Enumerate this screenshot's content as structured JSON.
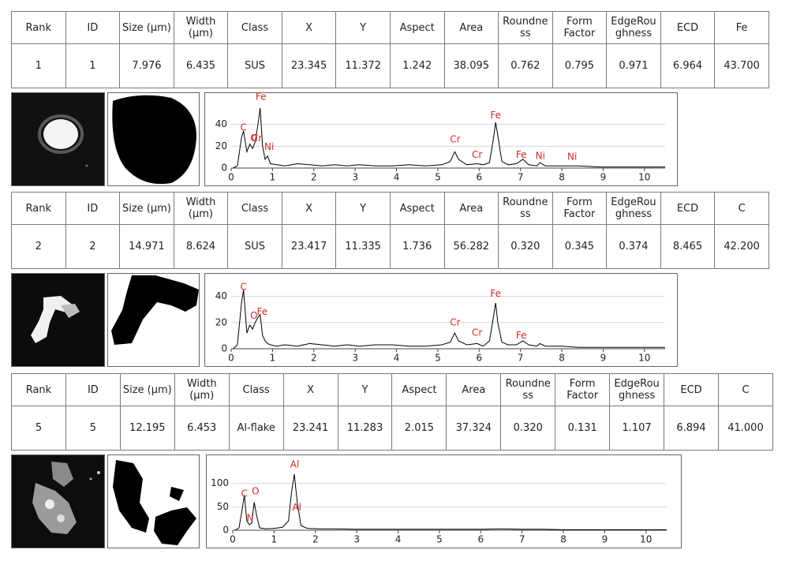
{
  "records": [
    {
      "header": [
        "Rank",
        "ID",
        "Size (μm)",
        "Width (μm)",
        "Class",
        "X",
        "Y",
        "Aspect",
        "Area",
        "Roundness",
        "Form Factor",
        "EdgeRoughness",
        "ECD",
        "Fe"
      ],
      "row": [
        "1",
        "1",
        "7.976",
        "6.435",
        "SUS",
        "23.345",
        "11.372",
        "1.242",
        "38.095",
        "0.762",
        "0.795",
        "0.971",
        "6.964",
        "43.700"
      ]
    },
    {
      "header": [
        "Rank",
        "ID",
        "Size (μm)",
        "Width (μm)",
        "Class",
        "X",
        "Y",
        "Aspect",
        "Area",
        "Roundness",
        "Form Factor",
        "EdgeRoughness",
        "ECD",
        "C"
      ],
      "row": [
        "2",
        "2",
        "14.971",
        "8.624",
        "SUS",
        "23.417",
        "11.335",
        "1.736",
        "56.282",
        "0.320",
        "0.345",
        "0.374",
        "8.465",
        "42.200"
      ]
    },
    {
      "header": [
        "Rank",
        "ID",
        "Size (μm)",
        "Width (μm)",
        "Class",
        "X",
        "Y",
        "Aspect",
        "Area",
        "Roundness",
        "Form Factor",
        "EdgeRoughness",
        "ECD",
        "C"
      ],
      "row": [
        "5",
        "5",
        "12.195",
        "6.453",
        "Al-flake",
        "23.241",
        "11.283",
        "2.015",
        "37.324",
        "0.320",
        "0.131",
        "1.107",
        "6.894",
        "41.000"
      ]
    }
  ],
  "chart_data": [
    {
      "type": "line",
      "color": "#000000",
      "annotation_color": "#d42a2a",
      "grid": true,
      "xlim": [
        0,
        10.5
      ],
      "xticks": [
        0,
        1,
        2,
        3,
        4,
        5,
        6,
        7,
        8,
        9,
        10
      ],
      "ylim": [
        0,
        60
      ],
      "yticks": [
        0,
        20,
        40
      ],
      "x": [
        0.05,
        0.15,
        0.25,
        0.3,
        0.38,
        0.45,
        0.52,
        0.58,
        0.65,
        0.7,
        0.76,
        0.82,
        0.88,
        0.95,
        1.1,
        1.3,
        1.6,
        1.9,
        2.2,
        2.5,
        2.8,
        3.1,
        3.5,
        3.9,
        4.3,
        4.7,
        5.1,
        5.3,
        5.41,
        5.5,
        5.7,
        5.95,
        6.1,
        6.25,
        6.35,
        6.4,
        6.45,
        6.55,
        6.7,
        6.9,
        7.06,
        7.2,
        7.4,
        7.47,
        7.6,
        8.0,
        8.4,
        8.9,
        9.4,
        9.9,
        10.4,
        10.5
      ],
      "values": [
        0,
        2,
        28,
        34,
        15,
        22,
        18,
        24,
        40,
        55,
        20,
        8,
        11,
        4,
        3,
        2,
        4,
        3,
        2,
        3,
        2,
        3,
        2,
        2,
        3,
        2,
        3,
        6,
        15,
        8,
        3,
        4,
        3,
        5,
        28,
        42,
        30,
        6,
        3,
        4,
        8,
        3,
        2,
        5,
        2,
        2,
        2,
        1,
        1,
        1,
        1,
        1
      ],
      "annotations": [
        {
          "text": "C",
          "x": 0.3,
          "y": 37
        },
        {
          "text": "O",
          "x": 0.55,
          "y": 27
        },
        {
          "text": "Cr",
          "x": 0.62,
          "y": 27
        },
        {
          "text": "Fe",
          "x": 0.72,
          "y": 65
        },
        {
          "text": "Ni",
          "x": 0.92,
          "y": 19
        },
        {
          "text": "Cr",
          "x": 5.42,
          "y": 26
        },
        {
          "text": "Cr",
          "x": 5.95,
          "y": 12
        },
        {
          "text": "Fe",
          "x": 6.4,
          "y": 48
        },
        {
          "text": "Fe",
          "x": 7.02,
          "y": 12
        },
        {
          "text": "Ni",
          "x": 7.48,
          "y": 11
        },
        {
          "text": "Ni",
          "x": 8.25,
          "y": 10
        }
      ]
    },
    {
      "type": "line",
      "color": "#000000",
      "annotation_color": "#d42a2a",
      "grid": true,
      "xlim": [
        0,
        10.5
      ],
      "xticks": [
        0,
        1,
        2,
        3,
        4,
        5,
        6,
        7,
        8,
        9,
        10
      ],
      "ylim": [
        0,
        50
      ],
      "yticks": [
        0,
        20,
        40
      ],
      "x": [
        0.05,
        0.15,
        0.25,
        0.3,
        0.38,
        0.45,
        0.52,
        0.58,
        0.65,
        0.7,
        0.76,
        0.82,
        0.88,
        0.95,
        1.1,
        1.3,
        1.6,
        1.9,
        2.2,
        2.5,
        2.8,
        3.1,
        3.5,
        3.9,
        4.3,
        4.7,
        5.1,
        5.3,
        5.41,
        5.5,
        5.7,
        5.95,
        6.1,
        6.25,
        6.35,
        6.4,
        6.45,
        6.55,
        6.7,
        6.9,
        7.06,
        7.2,
        7.4,
        7.47,
        7.6,
        8.0,
        8.4,
        8.9,
        9.4,
        9.9,
        10.4,
        10.5
      ],
      "values": [
        0,
        3,
        35,
        45,
        12,
        18,
        15,
        20,
        24,
        26,
        10,
        6,
        4,
        3,
        2,
        3,
        2,
        4,
        3,
        2,
        3,
        2,
        3,
        3,
        2,
        2,
        3,
        5,
        12,
        6,
        3,
        4,
        2,
        6,
        25,
        35,
        20,
        5,
        3,
        3,
        6,
        3,
        2,
        4,
        2,
        2,
        1,
        1,
        1,
        1,
        1,
        1
      ],
      "annotations": [
        {
          "text": "C",
          "x": 0.3,
          "y": 47
        },
        {
          "text": "O",
          "x": 0.55,
          "y": 25
        },
        {
          "text": "Fe",
          "x": 0.75,
          "y": 28
        },
        {
          "text": "Cr",
          "x": 5.42,
          "y": 20
        },
        {
          "text": "Cr",
          "x": 5.95,
          "y": 12
        },
        {
          "text": "Fe",
          "x": 6.4,
          "y": 42
        },
        {
          "text": "Fe",
          "x": 7.02,
          "y": 10
        }
      ]
    },
    {
      "type": "line",
      "color": "#000000",
      "annotation_color": "#d42a2a",
      "grid": true,
      "xlim": [
        0,
        10.5
      ],
      "xticks": [
        0,
        1,
        2,
        3,
        4,
        5,
        6,
        7,
        8,
        9,
        10
      ],
      "ylim": [
        0,
        140
      ],
      "yticks": [
        0,
        50,
        100
      ],
      "x": [
        0.05,
        0.15,
        0.22,
        0.28,
        0.34,
        0.4,
        0.46,
        0.52,
        0.58,
        0.65,
        0.8,
        1.0,
        1.2,
        1.35,
        1.42,
        1.49,
        1.56,
        1.65,
        1.8,
        2.1,
        2.5,
        3.0,
        3.5,
        4.0,
        4.5,
        5.0,
        5.5,
        6.0,
        6.5,
        7.0,
        7.5,
        8.0,
        8.5,
        9.0,
        9.5,
        10.0,
        10.5
      ],
      "values": [
        0,
        5,
        40,
        75,
        20,
        12,
        15,
        60,
        30,
        5,
        3,
        4,
        6,
        20,
        80,
        120,
        60,
        10,
        4,
        3,
        3,
        2,
        2,
        2,
        2,
        2,
        2,
        2,
        3,
        2,
        2,
        1,
        1,
        1,
        1,
        1,
        1
      ],
      "annotations": [
        {
          "text": "C",
          "x": 0.28,
          "y": 78
        },
        {
          "text": "O",
          "x": 0.55,
          "y": 83
        },
        {
          "text": "N",
          "x": 0.42,
          "y": 25
        },
        {
          "text": "Al",
          "x": 1.5,
          "y": 140
        },
        {
          "text": "Al",
          "x": 1.55,
          "y": 48
        }
      ]
    }
  ]
}
